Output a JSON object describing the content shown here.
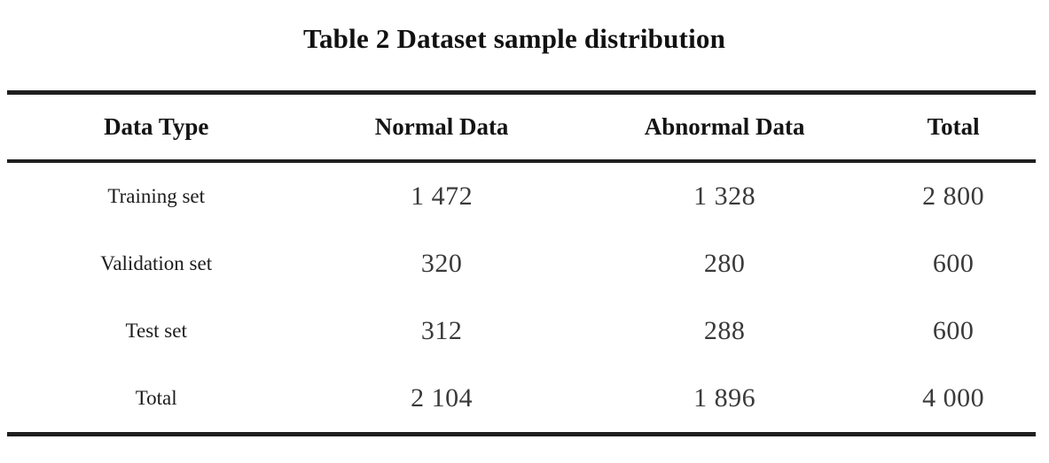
{
  "table": {
    "title": "Table 2 Dataset sample distribution",
    "columns": [
      "Data Type",
      "Normal Data",
      "Abnormal Data",
      "Total"
    ],
    "rows": [
      {
        "label": "Training set",
        "normal": "1 472",
        "abnormal": "1 328",
        "total": "2 800"
      },
      {
        "label": "Validation set",
        "normal": "320",
        "abnormal": "280",
        "total": "600"
      },
      {
        "label": "Test set",
        "normal": "312",
        "abnormal": "288",
        "total": "600"
      },
      {
        "label": "Total",
        "normal": "2 104",
        "abnormal": "1 896",
        "total": "4 000"
      }
    ]
  },
  "chart_data": {
    "type": "table",
    "title": "Table 2 Dataset sample distribution",
    "columns": [
      "Data Type",
      "Normal Data",
      "Abnormal Data",
      "Total"
    ],
    "rows": [
      [
        "Training set",
        1472,
        1328,
        2800
      ],
      [
        "Validation set",
        320,
        280,
        600
      ],
      [
        "Test set",
        312,
        288,
        600
      ],
      [
        "Total",
        2104,
        1896,
        4000
      ]
    ]
  },
  "colors": {
    "rule": "#1f1f1f",
    "text": "#1a1a1a",
    "background": "#ffffff"
  }
}
